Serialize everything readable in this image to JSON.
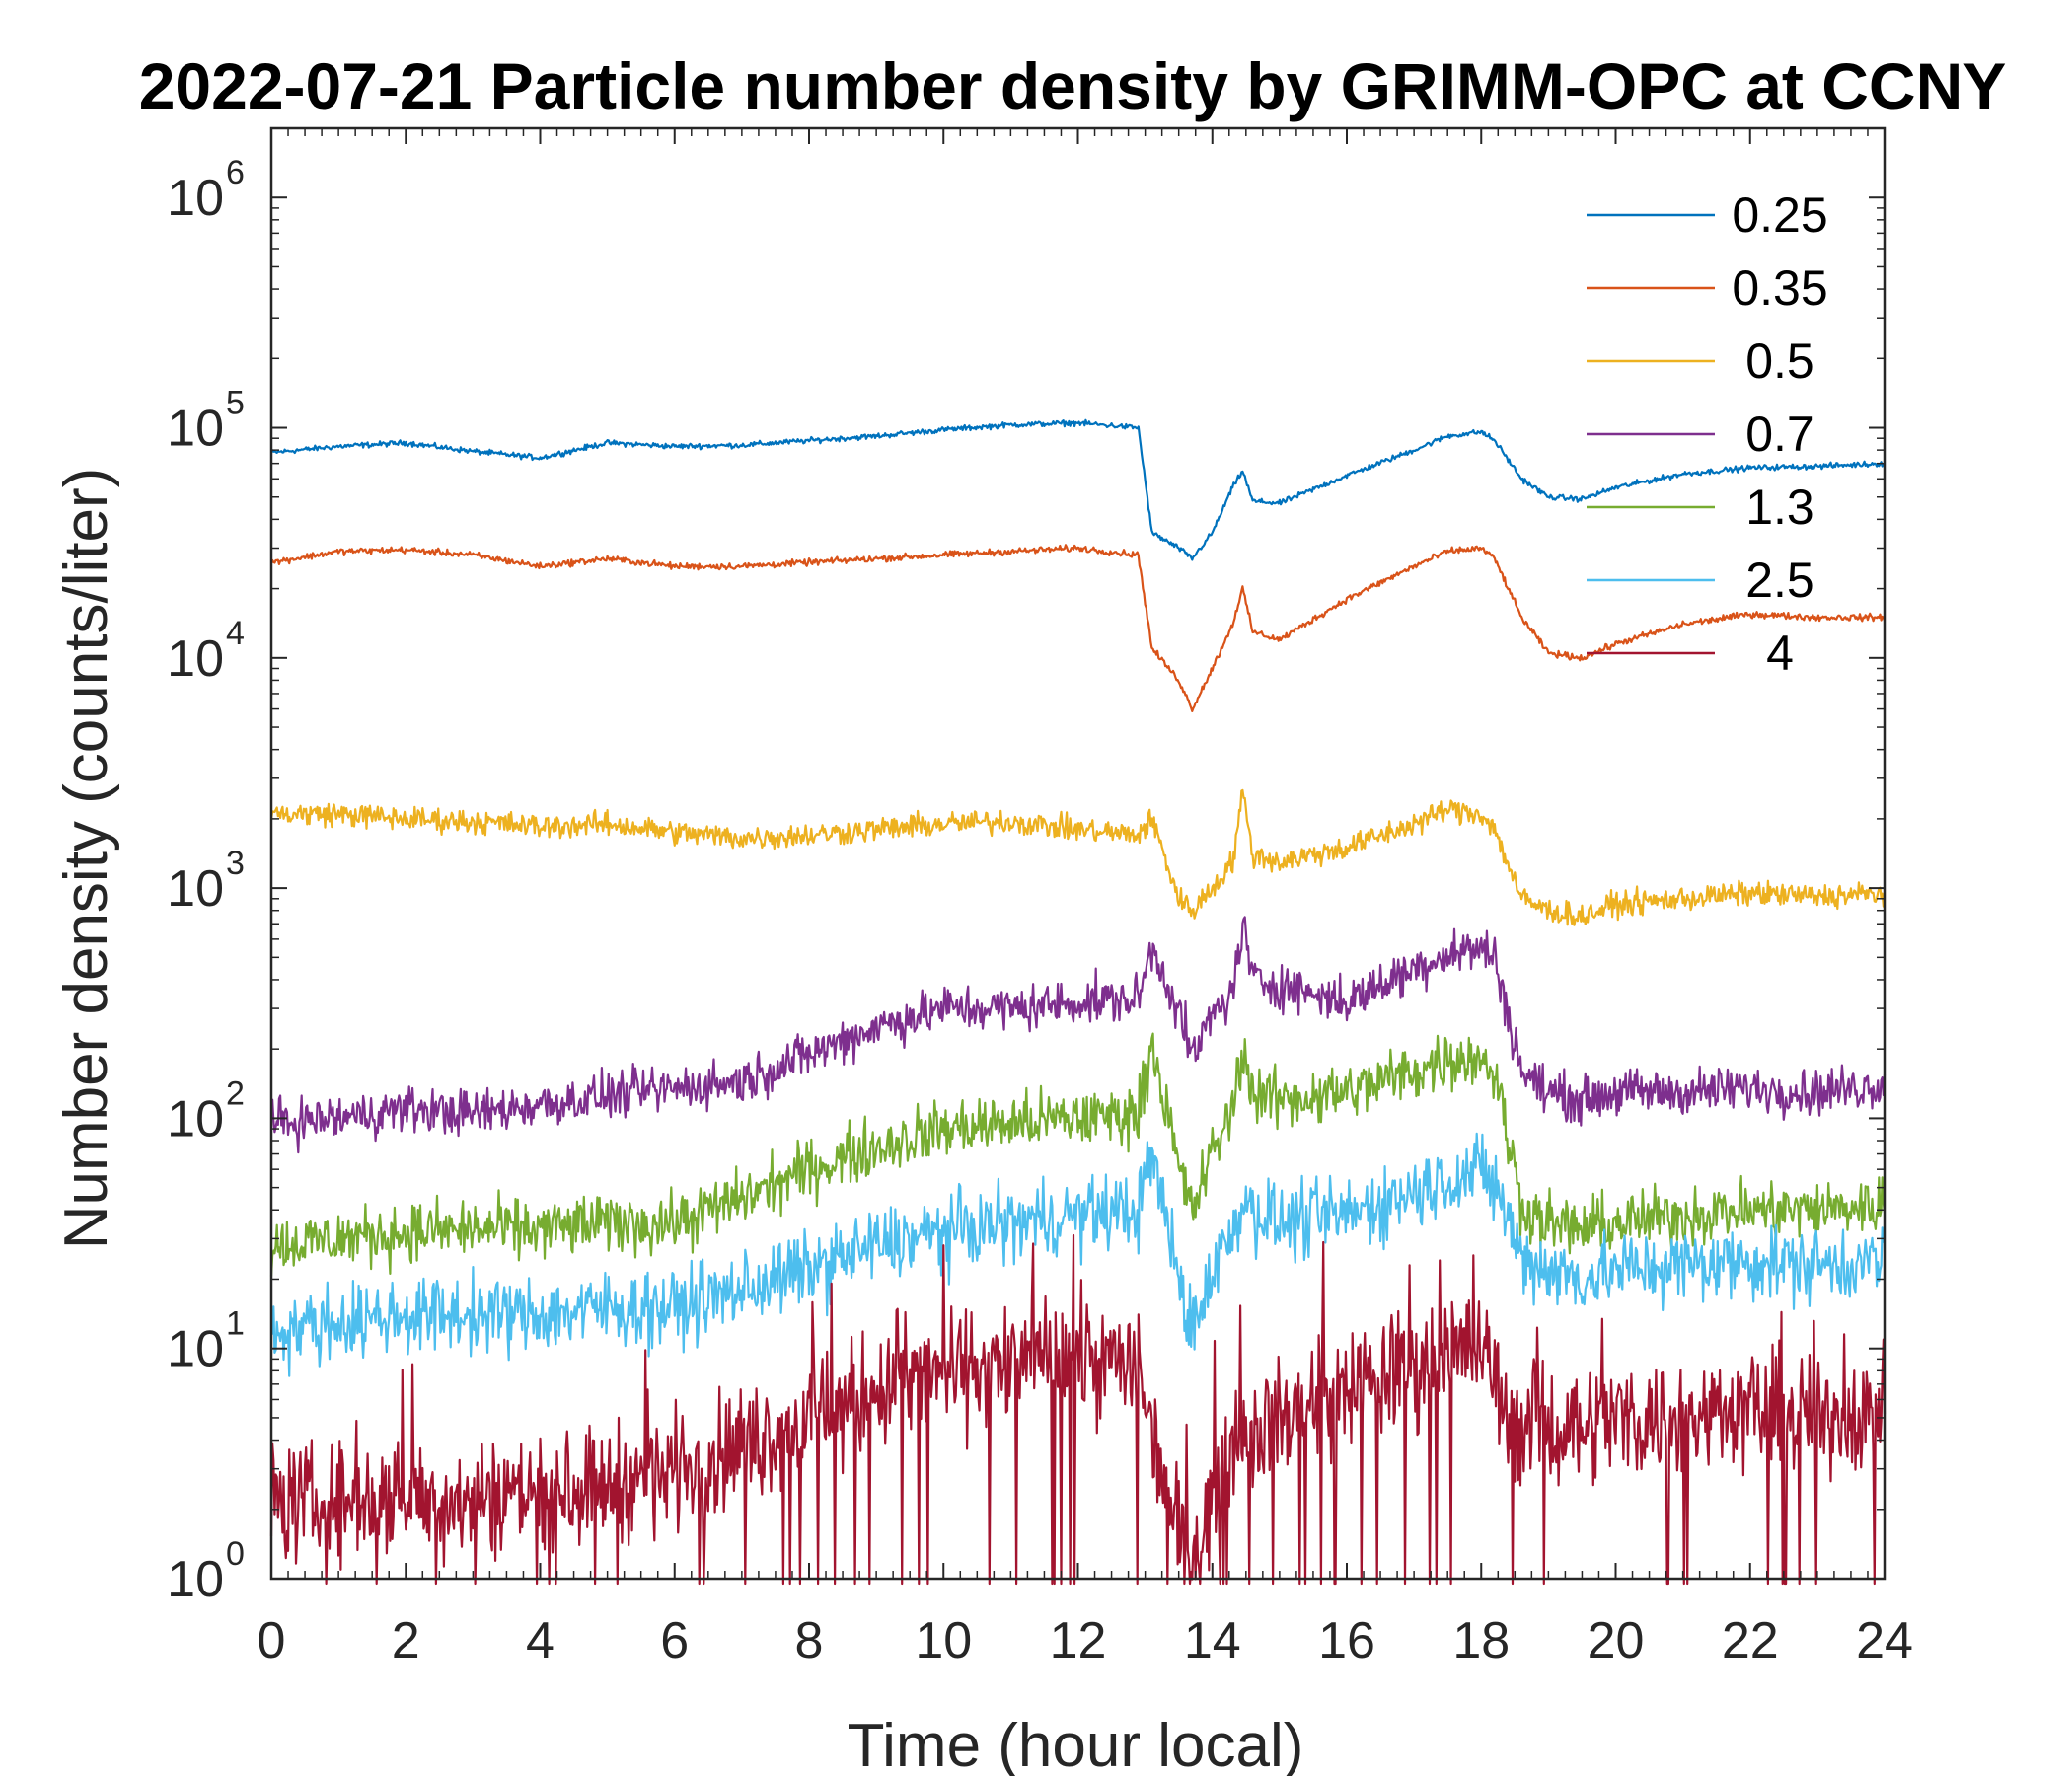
{
  "chart_data": {
    "type": "line",
    "title": "2022-07-21 Particle number density by GRIMM-OPC at CCNY",
    "xlabel": "Time (hour local)",
    "ylabel": "Number density (counts/liter)",
    "xlim": [
      0,
      24
    ],
    "ylim": [
      1,
      2000000
    ],
    "yscale": "log",
    "xticks": [
      "0",
      "2",
      "4",
      "6",
      "8",
      "10",
      "12",
      "14",
      "16",
      "18",
      "20",
      "22",
      "24"
    ],
    "yticks": [
      {
        "base": "10",
        "exp": "0"
      },
      {
        "base": "10",
        "exp": "1"
      },
      {
        "base": "10",
        "exp": "2"
      },
      {
        "base": "10",
        "exp": "3"
      },
      {
        "base": "10",
        "exp": "4"
      },
      {
        "base": "10",
        "exp": "5"
      },
      {
        "base": "10",
        "exp": "6"
      }
    ],
    "legend_position": "top-right",
    "x": [
      0,
      1,
      2,
      3,
      4,
      5,
      6,
      7,
      8,
      9,
      10,
      11,
      12,
      12.9,
      13.1,
      13.5,
      13.7,
      14,
      14.3,
      14.45,
      14.6,
      15,
      16,
      17,
      17.5,
      18,
      18.2,
      18.6,
      19,
      19.5,
      20,
      21,
      22,
      23,
      24
    ],
    "series": [
      {
        "name": "0.25",
        "color": "#0072BD",
        "values": [
          78000,
          83000,
          86000,
          79000,
          74000,
          86000,
          83000,
          84000,
          88000,
          92000,
          98000,
          103000,
          105000,
          100000,
          35000,
          30000,
          27000,
          35000,
          55000,
          65000,
          48000,
          47000,
          62000,
          80000,
          92000,
          96000,
          88000,
          60000,
          50000,
          49000,
          55000,
          63000,
          67000,
          68000,
          70000
        ]
      },
      {
        "name": "0.35",
        "color": "#D95319",
        "values": [
          26000,
          29000,
          29500,
          28000,
          25000,
          27000,
          25000,
          25000,
          26000,
          27000,
          28000,
          29000,
          30000,
          28000,
          11000,
          8000,
          6000,
          9000,
          14000,
          20000,
          13000,
          12000,
          18000,
          25000,
          29000,
          30000,
          27000,
          15000,
          10500,
          10000,
          11500,
          14000,
          15500,
          15000,
          15000
        ]
      },
      {
        "name": "0.5",
        "color": "#EDB120",
        "values": [
          2100,
          2100,
          2000,
          1950,
          1850,
          1900,
          1750,
          1650,
          1700,
          1800,
          1900,
          1950,
          1800,
          1700,
          2000,
          900,
          800,
          1000,
          1300,
          2600,
          1400,
          1300,
          1500,
          1900,
          2200,
          2100,
          1800,
          900,
          800,
          750,
          850,
          900,
          950,
          920,
          950
        ]
      },
      {
        "name": "0.7",
        "color": "#7E2F8E",
        "values": [
          95,
          100,
          110,
          105,
          115,
          125,
          135,
          145,
          190,
          250,
          300,
          300,
          320,
          330,
          550,
          300,
          180,
          280,
          350,
          700,
          400,
          380,
          320,
          450,
          520,
          550,
          500,
          160,
          130,
          120,
          130,
          130,
          135,
          130,
          140
        ]
      },
      {
        "name": "1.3",
        "color": "#77AC30",
        "values": [
          28,
          30,
          32,
          33,
          33,
          35,
          35,
          45,
          60,
          75,
          90,
          95,
          100,
          105,
          220,
          60,
          40,
          70,
          110,
          200,
          130,
          120,
          130,
          160,
          180,
          185,
          160,
          42,
          35,
          33,
          35,
          38,
          40,
          40,
          42
        ]
      },
      {
        "name": "2.5",
        "color": "#4DBEEE",
        "values": [
          12,
          13,
          14,
          14,
          14,
          15,
          15,
          18,
          22,
          28,
          32,
          35,
          38,
          40,
          70,
          20,
          12,
          22,
          32,
          45,
          40,
          35,
          38,
          48,
          55,
          58,
          52,
          25,
          22,
          20,
          22,
          23,
          24,
          23,
          24
        ]
      },
      {
        "name": "4",
        "color": "#A2142F",
        "values": [
          2.2,
          2.1,
          2.3,
          2.2,
          2.5,
          2.6,
          3.0,
          3.8,
          5.0,
          6.5,
          8.0,
          8.5,
          9.0,
          8.5,
          4.5,
          1.6,
          1.4,
          2.2,
          4.0,
          5.0,
          4.5,
          5.0,
          6.5,
          8.5,
          10.0,
          10.0,
          7.0,
          4.5,
          4.5,
          4.8,
          5.0,
          5.0,
          5.5,
          5.0,
          5.5
        ]
      }
    ]
  }
}
